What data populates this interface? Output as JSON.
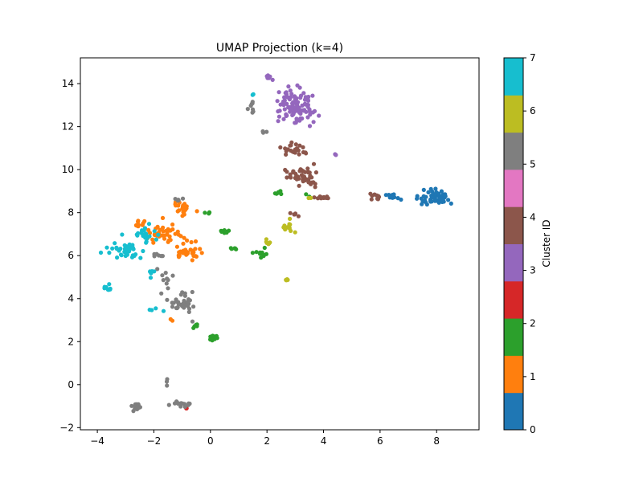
{
  "chart_data": {
    "type": "scatter",
    "title": "UMAP Projection (k=4)",
    "xlabel": "",
    "ylabel": "",
    "xlim": [
      -4.6,
      9.5
    ],
    "ylim": [
      -2.1,
      15.2
    ],
    "xticks": [
      -4,
      -2,
      0,
      2,
      4,
      6,
      8
    ],
    "yticks": [
      -2,
      0,
      2,
      4,
      6,
      8,
      10,
      12,
      14
    ],
    "grid": false,
    "colorbar": {
      "label": "Cluster ID",
      "range": [
        0,
        7
      ],
      "ticks": [
        0,
        1,
        2,
        3,
        4,
        5,
        6,
        7
      ],
      "colors": [
        "#1f77b4",
        "#ff7f0e",
        "#2ca02c",
        "#d62728",
        "#9467bd",
        "#8c564b",
        "#e377c2",
        "#7f7f7f",
        "#bcbd22",
        "#17becf"
      ]
    },
    "groups": [
      {
        "cluster": 0,
        "color": "#1f77b4",
        "clusters_spec": [
          [
            7.9,
            8.7,
            0.55,
            0.3,
            60
          ],
          [
            6.5,
            8.8,
            0.25,
            0.15,
            10
          ]
        ]
      },
      {
        "cluster": 1,
        "color": "#ff7f0e",
        "clusters_spec": [
          [
            -1.0,
            8.2,
            0.35,
            0.25,
            25
          ],
          [
            -1.6,
            7.0,
            0.6,
            0.5,
            40
          ],
          [
            -0.8,
            6.2,
            0.5,
            0.4,
            30
          ],
          [
            -2.5,
            7.5,
            0.2,
            0.15,
            10
          ],
          [
            -1.4,
            2.9,
            0.1,
            0.1,
            2
          ]
        ]
      },
      {
        "cluster": 2,
        "color": "#2ca02c",
        "clusters_spec": [
          [
            0.1,
            2.2,
            0.2,
            0.15,
            10
          ],
          [
            -0.5,
            2.7,
            0.15,
            0.1,
            6
          ],
          [
            0.5,
            7.1,
            0.3,
            0.1,
            8
          ],
          [
            1.7,
            6.1,
            0.25,
            0.2,
            10
          ],
          [
            0.8,
            6.3,
            0.2,
            0.05,
            5
          ],
          [
            -0.1,
            8.0,
            0.1,
            0.1,
            4
          ],
          [
            2.4,
            8.9,
            0.15,
            0.15,
            6
          ],
          [
            3.4,
            8.8,
            0.1,
            0.1,
            2
          ]
        ]
      },
      {
        "cluster": 3,
        "color": "#d62728",
        "clusters_spec": [
          [
            -0.9,
            -1.1,
            0.1,
            0.05,
            3
          ]
        ]
      },
      {
        "cluster": 4,
        "color": "#9467bd",
        "clusters_spec": [
          [
            3.0,
            13.0,
            0.6,
            0.7,
            110
          ],
          [
            2.1,
            14.3,
            0.1,
            0.1,
            6
          ],
          [
            4.4,
            10.7,
            0.05,
            0.05,
            2
          ]
        ]
      },
      {
        "cluster": 5,
        "color": "#8c564b",
        "clusters_spec": [
          [
            3.0,
            11.0,
            0.45,
            0.3,
            25
          ],
          [
            3.2,
            9.7,
            0.6,
            0.4,
            50
          ],
          [
            4.0,
            8.7,
            0.35,
            0.05,
            12
          ],
          [
            5.8,
            8.75,
            0.25,
            0.1,
            10
          ],
          [
            3.0,
            7.9,
            0.2,
            0.1,
            6
          ]
        ]
      },
      {
        "cluster": 7,
        "color": "#7f7f7f",
        "clusters_spec": [
          [
            -2.6,
            -1.0,
            0.15,
            0.2,
            20
          ],
          [
            -1.1,
            -0.9,
            0.4,
            0.1,
            14
          ],
          [
            -1.0,
            3.8,
            0.45,
            0.5,
            35
          ],
          [
            -1.6,
            5.0,
            0.3,
            0.6,
            10
          ],
          [
            -1.9,
            6.0,
            0.2,
            0.1,
            6
          ],
          [
            1.5,
            12.9,
            0.15,
            0.2,
            8
          ],
          [
            2.0,
            11.8,
            0.1,
            0.1,
            3
          ],
          [
            -1.5,
            0.1,
            0.1,
            0.15,
            3
          ],
          [
            -1.0,
            8.6,
            0.2,
            0.1,
            5
          ]
        ]
      },
      {
        "cluster": 8,
        "color": "#bcbd22",
        "clusters_spec": [
          [
            2.0,
            6.6,
            0.1,
            0.15,
            6
          ],
          [
            2.8,
            7.5,
            0.2,
            0.4,
            14
          ],
          [
            2.7,
            4.85,
            0.05,
            0.05,
            5
          ],
          [
            3.5,
            8.7,
            0.05,
            0.05,
            2
          ]
        ]
      },
      {
        "cluster": 9,
        "color": "#17becf",
        "clusters_spec": [
          [
            -3.0,
            6.2,
            0.6,
            0.5,
            40
          ],
          [
            -2.3,
            6.9,
            0.4,
            0.4,
            20
          ],
          [
            -3.6,
            4.4,
            0.1,
            0.2,
            8
          ],
          [
            -2.0,
            5.2,
            0.2,
            0.2,
            6
          ],
          [
            -2.0,
            3.5,
            0.2,
            0.1,
            4
          ],
          [
            1.5,
            13.5,
            0.05,
            0.05,
            2
          ]
        ]
      }
    ]
  }
}
